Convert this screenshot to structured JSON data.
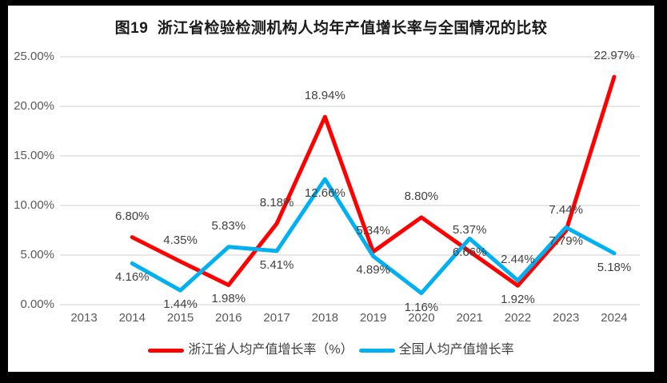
{
  "chart_data": {
    "type": "line",
    "title": "图19  浙江省检验检测机构人均年产值增长率与全国情况的比较",
    "xlabel": "",
    "ylabel": "",
    "categories": [
      "2013",
      "2014",
      "2015",
      "2016",
      "2017",
      "2018",
      "2019",
      "2020",
      "2021",
      "2022",
      "2023",
      "2024"
    ],
    "y_ticks": [
      "0.00%",
      "5.00%",
      "10.00%",
      "15.00%",
      "20.00%",
      "25.00%"
    ],
    "ylim": [
      0,
      25
    ],
    "grid": true,
    "legend_position": "bottom",
    "series": [
      {
        "name": "浙江省人均产值增长率（%）",
        "color": "#FF0000",
        "values": [
          null,
          6.8,
          4.35,
          1.98,
          8.18,
          18.94,
          5.34,
          8.8,
          5.37,
          1.92,
          7.44,
          22.97
        ],
        "labels": [
          null,
          "6.80%",
          "4.35%",
          "1.98%",
          "8.18%",
          "18.94%",
          "5.34%",
          "8.80%",
          "5.37%",
          "1.92%",
          "7.44%",
          "22.97%"
        ],
        "label_positions": [
          null,
          "above",
          "above",
          "below",
          "above",
          "above",
          "above",
          "above",
          "above",
          "below",
          "above",
          "above"
        ]
      },
      {
        "name": "全国人均产值增长率",
        "color": "#00B0F0",
        "values": [
          null,
          4.16,
          1.44,
          5.83,
          5.41,
          12.66,
          4.89,
          1.16,
          6.66,
          2.44,
          7.79,
          5.18
        ],
        "labels": [
          null,
          "4.16%",
          "1.44%",
          "5.83%",
          "5.41%",
          "12.66%",
          "4.89%",
          "1.16%",
          "6.66%",
          "2.44%",
          "7.79%",
          "5.18%"
        ],
        "label_positions": [
          null,
          "below",
          "below",
          "above",
          "below",
          "below",
          "below",
          "below",
          "below",
          "above",
          "below",
          "below"
        ]
      }
    ],
    "grid_color": "#D9D9D9",
    "axis_text_color": "#595959",
    "data_label_color": "#404040"
  }
}
